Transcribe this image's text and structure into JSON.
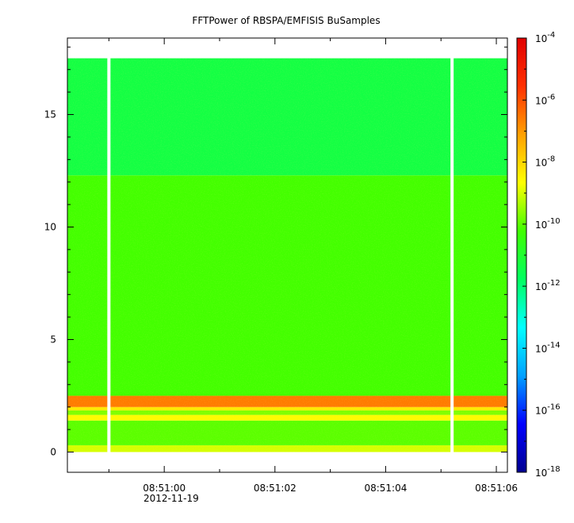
{
  "chart_data": {
    "type": "heatmap",
    "title": "FFTPower of RBSPA/EMFISIS  BuSamples",
    "x_axis": {
      "tick_labels": [
        "08:51:00",
        "08:51:02",
        "08:51:04",
        "08:51:06"
      ],
      "tick_values_s": [
        0,
        2,
        4,
        6
      ],
      "date_label": "2012-11-19",
      "range_s": [
        -1.75,
        6.2
      ]
    },
    "y_axis": {
      "tick_labels": [
        "0",
        "5",
        "10",
        "15"
      ],
      "tick_values": [
        0,
        5,
        10,
        15
      ],
      "range": [
        -0.9,
        18.4
      ]
    },
    "colorbar": {
      "scale": "log",
      "range": [
        1e-18,
        0.0001
      ],
      "tick_labels": [
        {
          "base": "10",
          "exp": "-4",
          "value": 0.0001
        },
        {
          "base": "10",
          "exp": "-6",
          "value": 1e-06
        },
        {
          "base": "10",
          "exp": "-8",
          "value": 1e-08
        },
        {
          "base": "10",
          "exp": "-10",
          "value": 1e-10
        },
        {
          "base": "10",
          "exp": "-12",
          "value": 1e-12
        },
        {
          "base": "10",
          "exp": "-14",
          "value": 1e-14
        },
        {
          "base": "10",
          "exp": "-16",
          "value": 1e-16
        },
        {
          "base": "10",
          "exp": "-18",
          "value": 1e-18
        }
      ],
      "colormap": [
        "#00008f",
        "#0000ff",
        "#00a0ff",
        "#00ffff",
        "#00ff60",
        "#40ff00",
        "#ffff00",
        "#ffa000",
        "#ff3000",
        "#e00000"
      ]
    },
    "data_extent": {
      "y_min": 0.0,
      "y_max": 17.5
    },
    "gaps_s": [
      -1.0,
      5.2
    ],
    "bands": [
      {
        "y_from": 0.0,
        "y_to": 0.3,
        "log_power": -9.0
      },
      {
        "y_from": 0.3,
        "y_to": 1.4,
        "log_power": -10.0
      },
      {
        "y_from": 1.4,
        "y_to": 1.65,
        "log_power": -8.6
      },
      {
        "y_from": 1.65,
        "y_to": 1.85,
        "log_power": -9.7
      },
      {
        "y_from": 1.85,
        "y_to": 2.0,
        "log_power": -8.3
      },
      {
        "y_from": 2.0,
        "y_to": 2.5,
        "log_power": -6.6
      },
      {
        "y_from": 2.5,
        "y_to": 12.3,
        "log_power": -10.2
      },
      {
        "y_from": 12.3,
        "y_to": 17.5,
        "log_power": -11.3
      }
    ]
  }
}
